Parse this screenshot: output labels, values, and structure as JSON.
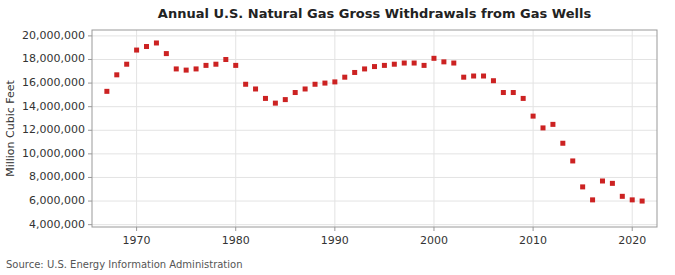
{
  "chart_data": {
    "type": "scatter",
    "title": "Annual U.S. Natural Gas Gross Withdrawals from Gas Wells",
    "ylabel": "Million Cubic Feet",
    "source": "Source: U.S. Energy Information Administration",
    "color": "#cc2222",
    "marker": "square",
    "grid": true,
    "xlim": [
      1965.5,
      2022.5
    ],
    "ylim": [
      3800000,
      20500000
    ],
    "xticks": [
      1970,
      1980,
      1990,
      2000,
      2010,
      2020
    ],
    "yticks": [
      {
        "value": 4000000,
        "label": "4,000,000"
      },
      {
        "value": 6000000,
        "label": "6,000,000"
      },
      {
        "value": 8000000,
        "label": "8,000,000"
      },
      {
        "value": 10000000,
        "label": "10,000,000"
      },
      {
        "value": 12000000,
        "label": "12,000,000"
      },
      {
        "value": 14000000,
        "label": "14,000,000"
      },
      {
        "value": 16000000,
        "label": "16,000,000"
      },
      {
        "value": 18000000,
        "label": "18,000,000"
      },
      {
        "value": 20000000,
        "label": "20,000,000"
      }
    ],
    "x": [
      1967,
      1968,
      1969,
      1970,
      1971,
      1972,
      1973,
      1974,
      1975,
      1976,
      1977,
      1978,
      1979,
      1980,
      1981,
      1982,
      1983,
      1984,
      1985,
      1986,
      1987,
      1988,
      1989,
      1990,
      1991,
      1992,
      1993,
      1994,
      1995,
      1996,
      1997,
      1998,
      1999,
      2000,
      2001,
      2002,
      2003,
      2004,
      2005,
      2006,
      2007,
      2008,
      2009,
      2010,
      2011,
      2012,
      2013,
      2014,
      2015,
      2016,
      2017,
      2018,
      2019,
      2020,
      2021
    ],
    "values": [
      15300000,
      16700000,
      17600000,
      18800000,
      19100000,
      19400000,
      18500000,
      17200000,
      17100000,
      17200000,
      17500000,
      17600000,
      18000000,
      17500000,
      15900000,
      15500000,
      14700000,
      14300000,
      14600000,
      15200000,
      15500000,
      15900000,
      16000000,
      16100000,
      16500000,
      16900000,
      17200000,
      17400000,
      17500000,
      17600000,
      17700000,
      17700000,
      17500000,
      18100000,
      17800000,
      17700000,
      16500000,
      16600000,
      16600000,
      16200000,
      15200000,
      15200000,
      14700000,
      13200000,
      12200000,
      12500000,
      10900000,
      9400000,
      7200000,
      6100000,
      7700000,
      7500000,
      6400000,
      6100000,
      6000000
    ]
  }
}
